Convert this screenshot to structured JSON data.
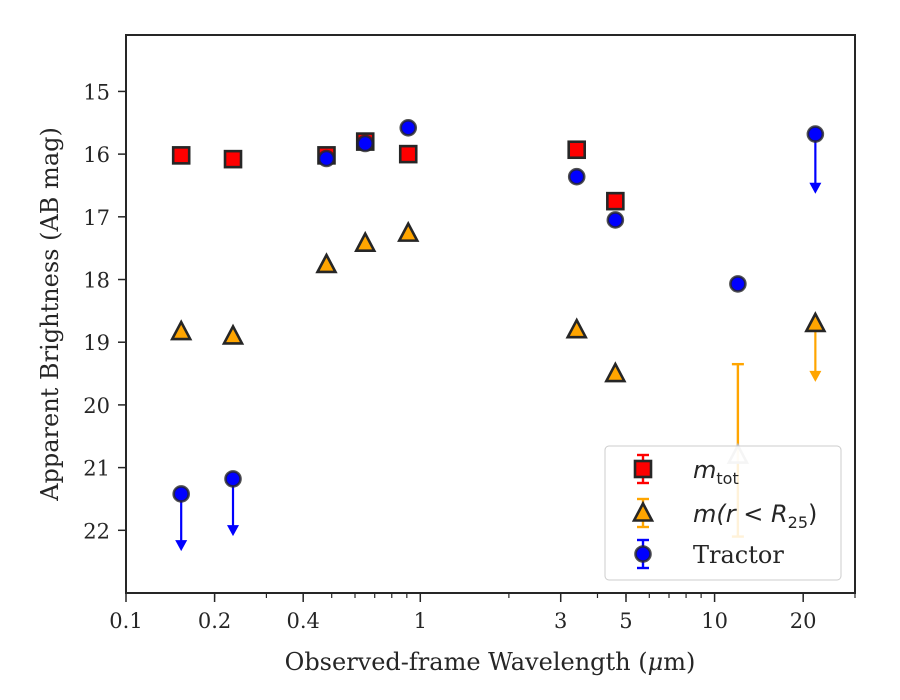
{
  "chart_data": {
    "type": "scatter",
    "xscale": "log",
    "yinverted": true,
    "xlim": [
      0.1,
      30
    ],
    "ylim": [
      23.0,
      14.1
    ],
    "xlabel_pre": "Observed-frame Wavelength (",
    "xlabel_mu": "μ",
    "xlabel_post": "m)",
    "ylabel": "Apparent Brightness (AB mag)",
    "x_ticks": [
      {
        "value": 0.1,
        "label": "0.1"
      },
      {
        "value": 0.2,
        "label": "0.2"
      },
      {
        "value": 0.4,
        "label": "0.4"
      },
      {
        "value": 1,
        "label": "1"
      },
      {
        "value": 3,
        "label": "3"
      },
      {
        "value": 5,
        "label": "5"
      },
      {
        "value": 10,
        "label": "10"
      },
      {
        "value": 20,
        "label": "20"
      }
    ],
    "y_ticks": [
      {
        "value": 15,
        "label": "15"
      },
      {
        "value": 16,
        "label": "16"
      },
      {
        "value": 17,
        "label": "17"
      },
      {
        "value": 18,
        "label": "18"
      },
      {
        "value": 19,
        "label": "19"
      },
      {
        "value": 20,
        "label": "20"
      },
      {
        "value": 21,
        "label": "21"
      },
      {
        "value": 22,
        "label": "22"
      }
    ],
    "series": [
      {
        "key": "mtot",
        "marker": "square",
        "color": "#ff0000",
        "points": [
          {
            "x": 0.154,
            "y": 16.02
          },
          {
            "x": 0.231,
            "y": 16.08
          },
          {
            "x": 0.48,
            "y": 16.02
          },
          {
            "x": 0.65,
            "y": 15.8
          },
          {
            "x": 0.91,
            "y": 16.0
          },
          {
            "x": 3.4,
            "y": 15.93
          },
          {
            "x": 4.6,
            "y": 16.75
          }
        ]
      },
      {
        "key": "mr25",
        "marker": "triangle",
        "color": "#ffa500",
        "points": [
          {
            "x": 0.154,
            "y": 18.83
          },
          {
            "x": 0.231,
            "y": 18.9
          },
          {
            "x": 0.48,
            "y": 17.76
          },
          {
            "x": 0.65,
            "y": 17.42
          },
          {
            "x": 0.91,
            "y": 17.26
          },
          {
            "x": 3.4,
            "y": 18.8
          },
          {
            "x": 4.6,
            "y": 19.5
          },
          {
            "x": 12.0,
            "y": 20.8,
            "err_low": 19.35,
            "err_high": 22.1
          },
          {
            "x": 22.0,
            "y": 18.7,
            "upper_limit": true,
            "arrow_to": 19.6
          }
        ]
      },
      {
        "key": "tractor",
        "marker": "circle",
        "color": "#0000ff",
        "points": [
          {
            "x": 0.154,
            "y": 21.42,
            "upper_limit": true,
            "arrow_to": 22.3
          },
          {
            "x": 0.231,
            "y": 21.18,
            "upper_limit": true,
            "arrow_to": 22.06
          },
          {
            "x": 0.48,
            "y": 16.07
          },
          {
            "x": 0.65,
            "y": 15.83
          },
          {
            "x": 0.91,
            "y": 15.58
          },
          {
            "x": 3.4,
            "y": 16.36
          },
          {
            "x": 4.6,
            "y": 17.05
          },
          {
            "x": 12.0,
            "y": 18.07
          },
          {
            "x": 22.0,
            "y": 15.68,
            "upper_limit": true,
            "arrow_to": 16.6
          }
        ]
      }
    ],
    "legend": {
      "placement": "lower-right",
      "entries": [
        {
          "key": "mtot",
          "label": "m",
          "sub": "tot"
        },
        {
          "key": "mr25",
          "label": "m(r < R",
          "sub": "25",
          "suffix": ")"
        },
        {
          "key": "tractor",
          "label": "Tractor"
        }
      ]
    },
    "colors": {
      "frame": "#262626",
      "marker_edge": "#262626",
      "mtot": "#ff0000",
      "mr25": "#ffa500",
      "tractor": "#0000ff"
    }
  }
}
